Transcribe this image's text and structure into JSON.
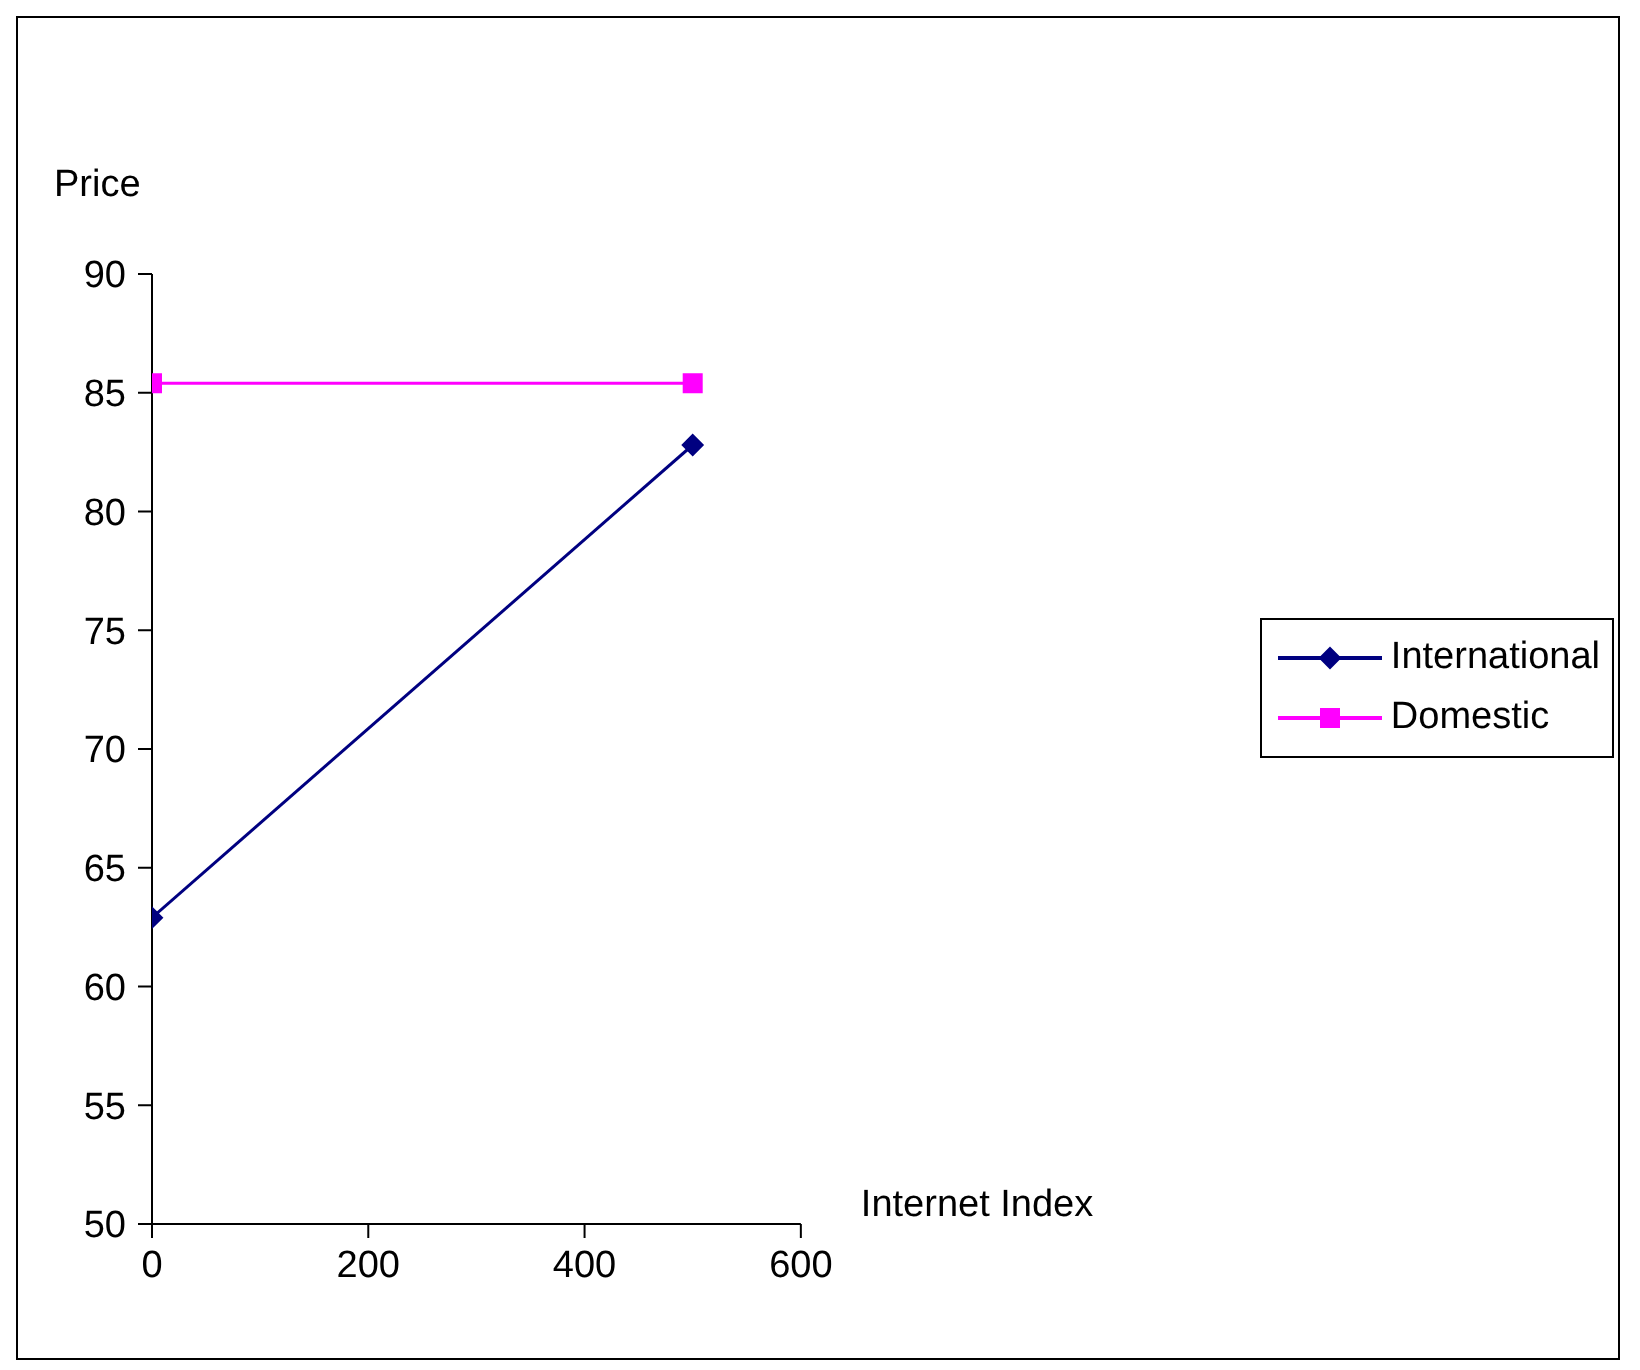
{
  "chart_data": {
    "type": "line",
    "xlabel": "Internet Index",
    "ylabel": "Price",
    "x": [
      0,
      500
    ],
    "series": [
      {
        "name": "International",
        "color": "#000080",
        "values": [
          62.9,
          82.8
        ],
        "marker": "diamond"
      },
      {
        "name": "Domestic",
        "color": "#ff00ff",
        "values": [
          85.4,
          85.4
        ],
        "marker": "square"
      }
    ],
    "xlim": [
      0,
      600
    ],
    "xticks": [
      0,
      200,
      400,
      600
    ],
    "ylim": [
      50,
      90
    ],
    "yticks": [
      50,
      55,
      60,
      65,
      70,
      75,
      80,
      85,
      90
    ],
    "grid": false,
    "legend": "right",
    "line_style": "solid"
  }
}
